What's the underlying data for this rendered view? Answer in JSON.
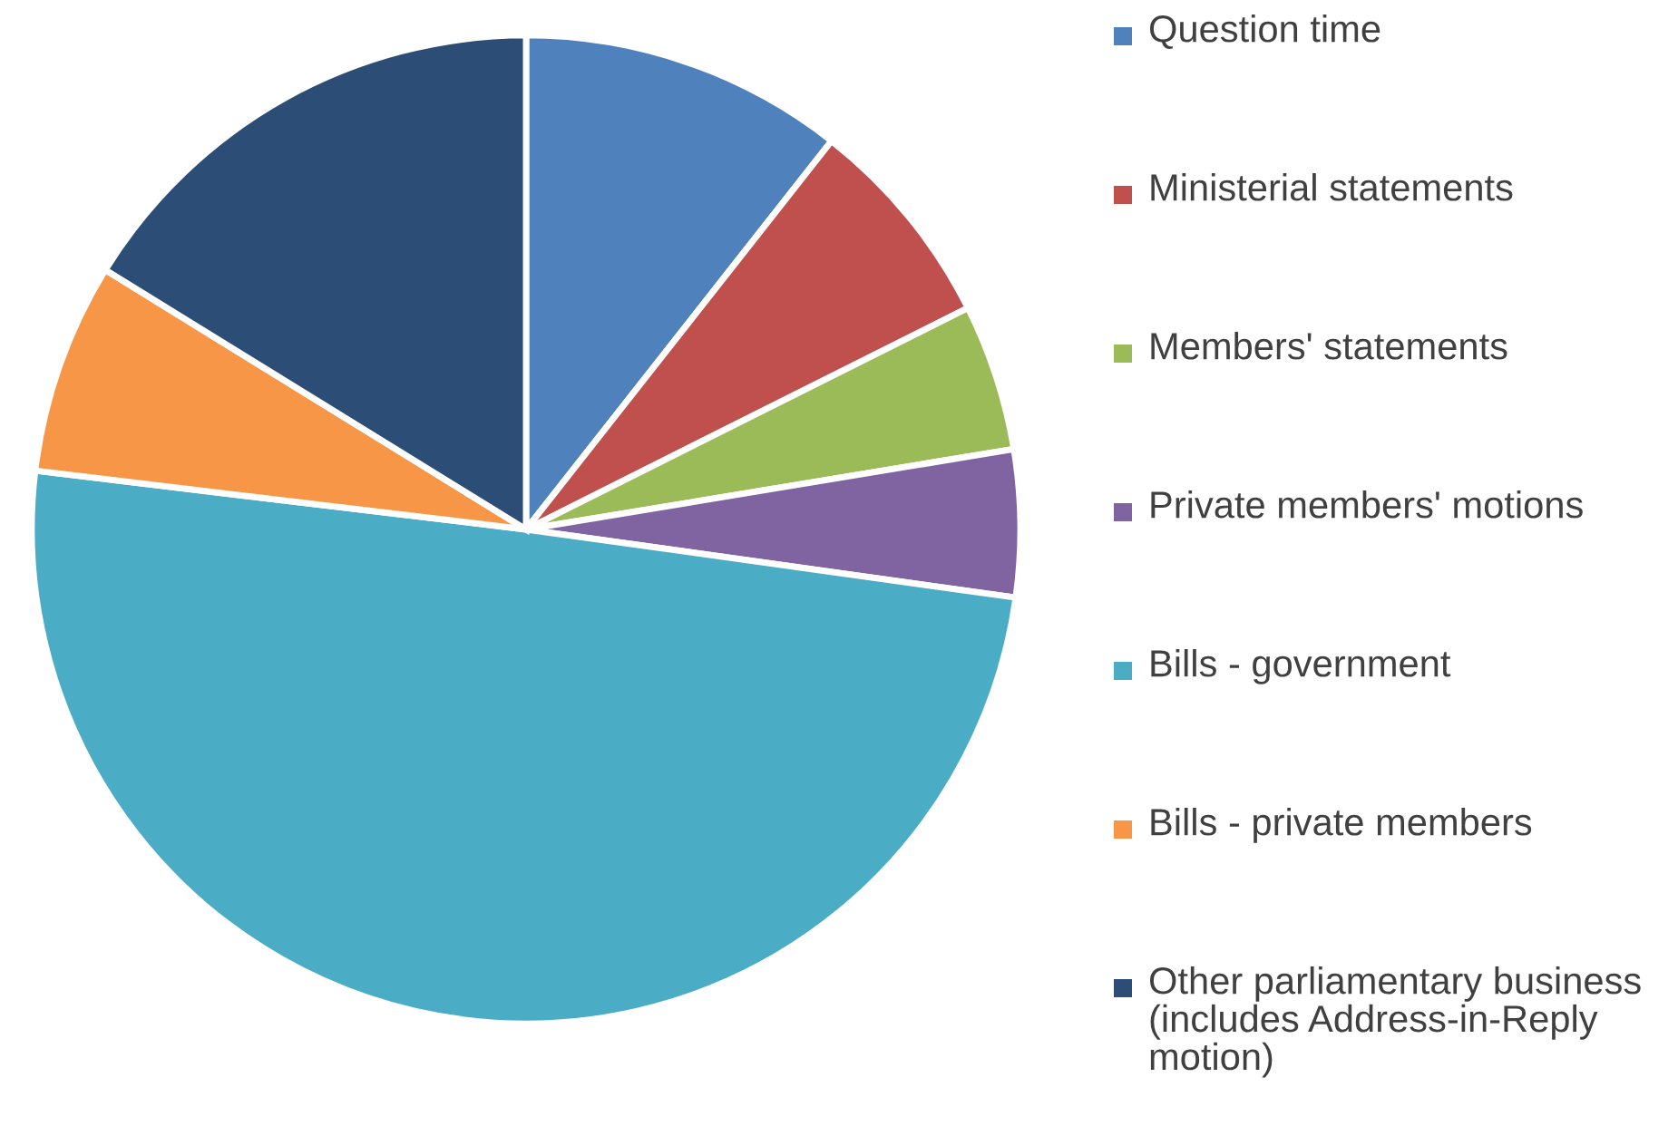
{
  "chart_data": {
    "type": "pie",
    "categories": [
      "Question time",
      "Ministerial statements",
      "Members' statements",
      "Private members' motions",
      "Bills - government",
      "Bills - private members",
      "Other parliamentary business (includes Address-in-Reply motion)"
    ],
    "values": [
      10.6,
      7.0,
      4.8,
      4.8,
      49.7,
      6.9,
      16.2
    ],
    "colors": [
      "#4f81bd",
      "#c0504d",
      "#9bbb59",
      "#8064a2",
      "#4bacc6",
      "#f79646",
      "#2c4d75"
    ],
    "legend": "right"
  }
}
